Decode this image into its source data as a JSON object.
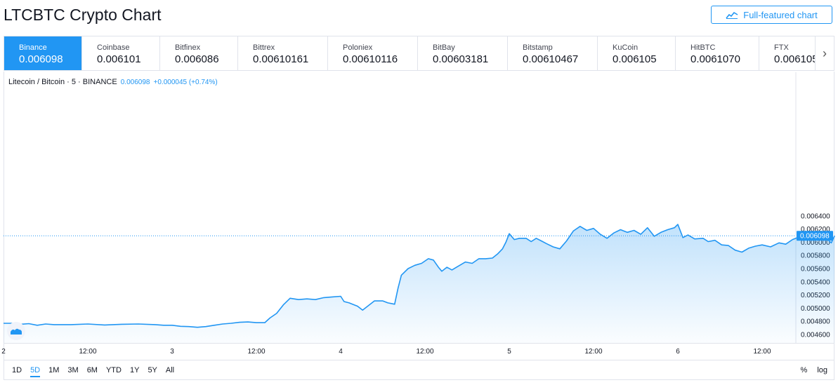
{
  "page": {
    "title": "LTCBTC Crypto Chart",
    "full_featured_label": "Full-featured chart"
  },
  "exchanges": [
    {
      "name": "Binance",
      "price": "0.006098",
      "active": true
    },
    {
      "name": "Coinbase",
      "price": "0.006101"
    },
    {
      "name": "Bitfinex",
      "price": "0.006086"
    },
    {
      "name": "Bittrex",
      "price": "0.00610161"
    },
    {
      "name": "Poloniex",
      "price": "0.00610116"
    },
    {
      "name": "BitBay",
      "price": "0.00603181"
    },
    {
      "name": "Bitstamp",
      "price": "0.00610467"
    },
    {
      "name": "KuCoin",
      "price": "0.006105"
    },
    {
      "name": "HitBTC",
      "price": "0.0061070"
    },
    {
      "name": "FTX",
      "price": "0.006105"
    }
  ],
  "legend": {
    "symbol": "Litecoin / Bitcoin · 5 · BINANCE",
    "last": "0.006098",
    "change": "+0.000045 (+0.74%)"
  },
  "ranges": [
    "1D",
    "5D",
    "1M",
    "3M",
    "6M",
    "YTD",
    "1Y",
    "5Y",
    "All"
  ],
  "selected_range": "5D",
  "scale_options": {
    "percent": "%",
    "log": "log"
  },
  "colors": {
    "accent": "#2196f3",
    "line": "#2196f3",
    "fill_top": "#bbdcfb"
  },
  "chart_data": {
    "type": "area",
    "x_ticks": [
      "2",
      "12:00",
      "3",
      "12:00",
      "4",
      "12:00",
      "5",
      "12:00",
      "6",
      "12:00"
    ],
    "y_ticks": [
      "0.006400",
      "0.006200",
      "0.006000",
      "0.005800",
      "0.005600",
      "0.005400",
      "0.005200",
      "0.005000",
      "0.004800",
      "0.004600"
    ],
    "ylim": [
      0.00455,
      0.00645
    ],
    "last_price_label": "0.006098",
    "last_price": 0.006098,
    "x_range": [
      0,
      4.93
    ],
    "x_unit": "days since the '2' tick",
    "points": [
      [
        0.0,
        0.00477
      ],
      [
        0.05,
        0.00477
      ],
      [
        0.1,
        0.004755
      ],
      [
        0.15,
        0.004765
      ],
      [
        0.2,
        0.00474
      ],
      [
        0.25,
        0.00476
      ],
      [
        0.3,
        0.00475
      ],
      [
        0.4,
        0.00475
      ],
      [
        0.5,
        0.00476
      ],
      [
        0.6,
        0.004745
      ],
      [
        0.7,
        0.004755
      ],
      [
        0.8,
        0.00476
      ],
      [
        0.9,
        0.00475
      ],
      [
        0.95,
        0.00474
      ],
      [
        1.0,
        0.00474
      ],
      [
        1.05,
        0.004725
      ],
      [
        1.1,
        0.00472
      ],
      [
        1.15,
        0.00471
      ],
      [
        1.2,
        0.00472
      ],
      [
        1.25,
        0.00474
      ],
      [
        1.3,
        0.00476
      ],
      [
        1.35,
        0.00477
      ],
      [
        1.4,
        0.004785
      ],
      [
        1.45,
        0.00479
      ],
      [
        1.5,
        0.00478
      ],
      [
        1.55,
        0.00478
      ],
      [
        1.58,
        0.00485
      ],
      [
        1.62,
        0.00492
      ],
      [
        1.66,
        0.00505
      ],
      [
        1.7,
        0.00515
      ],
      [
        1.75,
        0.00513
      ],
      [
        1.8,
        0.00514
      ],
      [
        1.85,
        0.00513
      ],
      [
        1.9,
        0.00516
      ],
      [
        1.95,
        0.00517
      ],
      [
        2.0,
        0.00518
      ],
      [
        2.02,
        0.0051
      ],
      [
        2.05,
        0.00508
      ],
      [
        2.08,
        0.00505
      ],
      [
        2.1,
        0.00503
      ],
      [
        2.13,
        0.00497
      ],
      [
        2.16,
        0.00503
      ],
      [
        2.2,
        0.00511
      ],
      [
        2.25,
        0.00511
      ],
      [
        2.28,
        0.00508
      ],
      [
        2.3,
        0.00507
      ],
      [
        2.32,
        0.00506
      ],
      [
        2.34,
        0.0053
      ],
      [
        2.36,
        0.0055
      ],
      [
        2.4,
        0.0056
      ],
      [
        2.44,
        0.00565
      ],
      [
        2.48,
        0.00568
      ],
      [
        2.52,
        0.00575
      ],
      [
        2.55,
        0.00573
      ],
      [
        2.58,
        0.00562
      ],
      [
        2.6,
        0.00556
      ],
      [
        2.63,
        0.00562
      ],
      [
        2.66,
        0.00558
      ],
      [
        2.7,
        0.00564
      ],
      [
        2.74,
        0.0057
      ],
      [
        2.78,
        0.00568
      ],
      [
        2.82,
        0.00575
      ],
      [
        2.86,
        0.00575
      ],
      [
        2.9,
        0.00576
      ],
      [
        2.93,
        0.00582
      ],
      [
        2.96,
        0.0059
      ],
      [
        2.98,
        0.006
      ],
      [
        3.0,
        0.00613
      ],
      [
        3.03,
        0.00604
      ],
      [
        3.06,
        0.00606
      ],
      [
        3.1,
        0.00606
      ],
      [
        3.13,
        0.00601
      ],
      [
        3.16,
        0.00606
      ],
      [
        3.19,
        0.00602
      ],
      [
        3.22,
        0.00598
      ],
      [
        3.26,
        0.00593
      ],
      [
        3.3,
        0.0059
      ],
      [
        3.34,
        0.00602
      ],
      [
        3.38,
        0.00617
      ],
      [
        3.42,
        0.00624
      ],
      [
        3.46,
        0.00618
      ],
      [
        3.5,
        0.00621
      ],
      [
        3.54,
        0.00612
      ],
      [
        3.58,
        0.00606
      ],
      [
        3.62,
        0.00614
      ],
      [
        3.66,
        0.00619
      ],
      [
        3.7,
        0.00615
      ],
      [
        3.74,
        0.00618
      ],
      [
        3.78,
        0.00612
      ],
      [
        3.82,
        0.00622
      ],
      [
        3.86,
        0.00609
      ],
      [
        3.9,
        0.00615
      ],
      [
        3.94,
        0.00619
      ],
      [
        3.98,
        0.00622
      ],
      [
        4.0,
        0.00627
      ],
      [
        4.03,
        0.00607
      ],
      [
        4.06,
        0.00611
      ],
      [
        4.1,
        0.00605
      ],
      [
        4.15,
        0.00606
      ],
      [
        4.18,
        0.00601
      ],
      [
        4.22,
        0.00603
      ],
      [
        4.26,
        0.00596
      ],
      [
        4.3,
        0.00595
      ],
      [
        4.34,
        0.00588
      ],
      [
        4.38,
        0.00585
      ],
      [
        4.42,
        0.00591
      ],
      [
        4.46,
        0.00594
      ],
      [
        4.5,
        0.00596
      ],
      [
        4.55,
        0.00593
      ],
      [
        4.6,
        0.00599
      ],
      [
        4.64,
        0.00597
      ],
      [
        4.68,
        0.00604
      ],
      [
        4.72,
        0.00608
      ],
      [
        4.76,
        0.00606
      ],
      [
        4.8,
        0.00604
      ],
      [
        4.84,
        0.00608
      ],
      [
        4.88,
        0.00606
      ],
      [
        4.91,
        0.00599
      ],
      [
        4.93,
        0.006098
      ]
    ]
  }
}
